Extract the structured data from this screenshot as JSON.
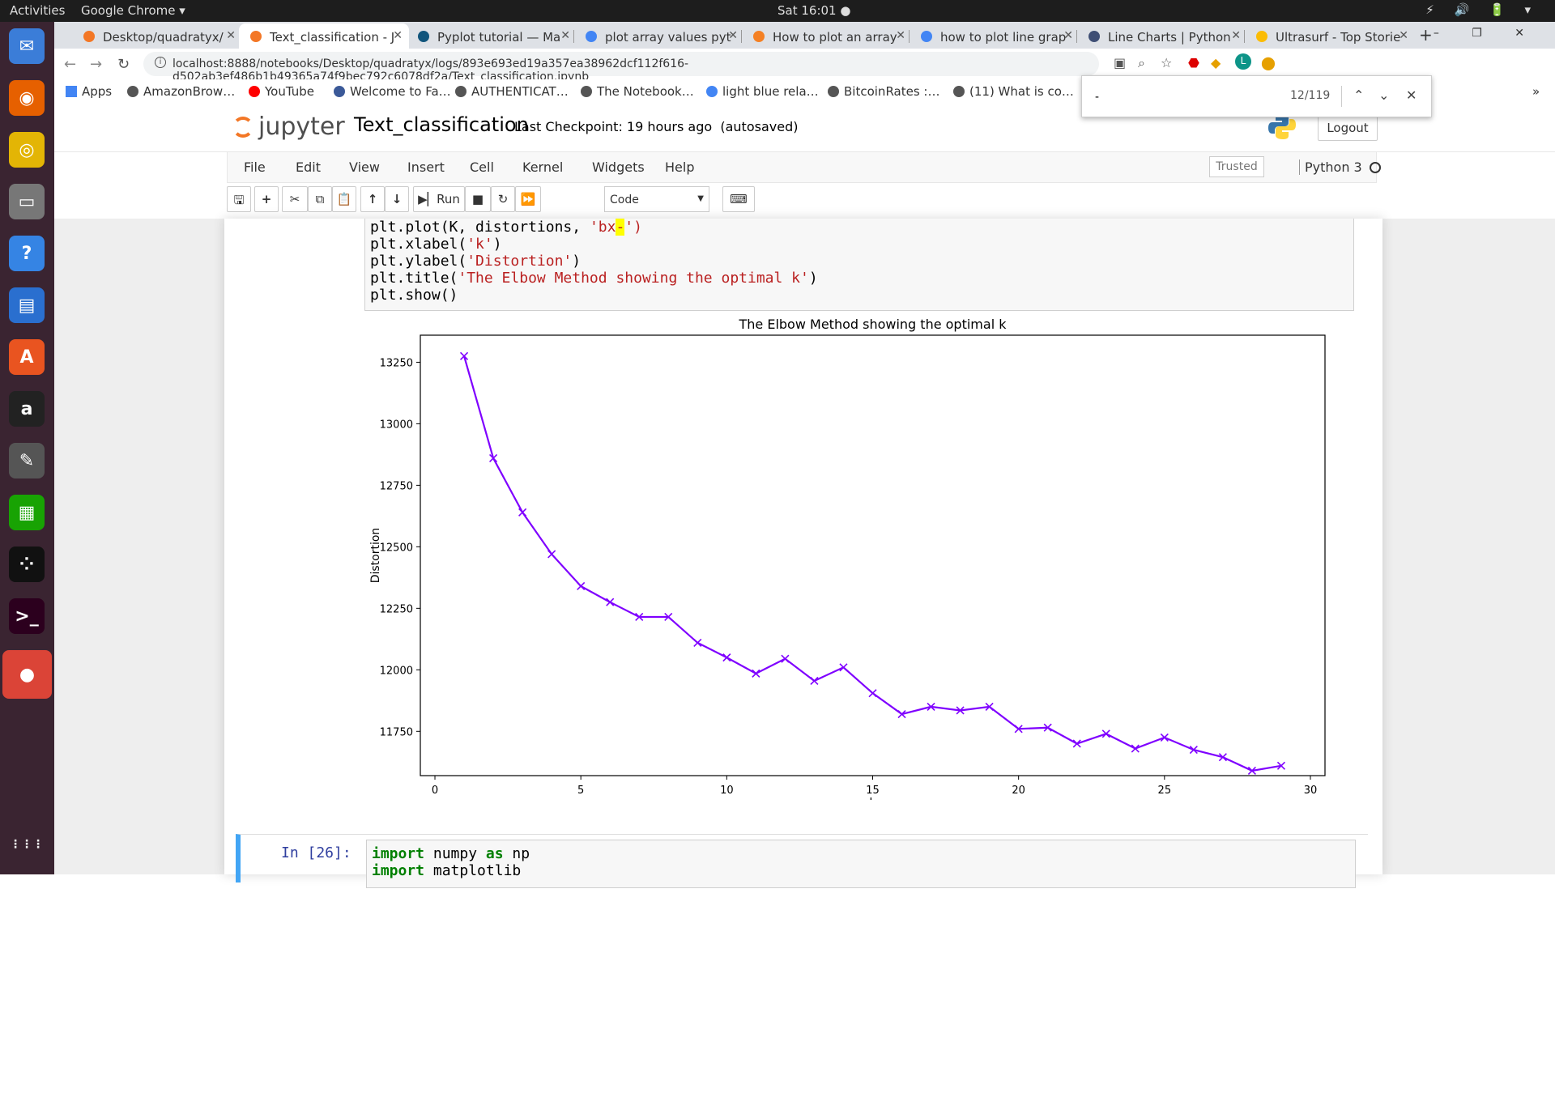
{
  "topbar": {
    "activities": "Activities",
    "app": "Google Chrome ▾",
    "clock": "Sat 16:01 ●",
    "tray": "⚡ 🔊 🔋 ▾"
  },
  "dock": [
    {
      "name": "thunderbird-icon",
      "glyph": "✉",
      "color": "#3b7dd8"
    },
    {
      "name": "firefox-icon",
      "glyph": "◉",
      "color": "#e66000"
    },
    {
      "name": "rhythmbox-icon",
      "glyph": "◎",
      "color": "#e3b505"
    },
    {
      "name": "files-icon",
      "glyph": "▭",
      "color": "#777"
    },
    {
      "name": "help-icon",
      "glyph": "?",
      "color": "#3584e4"
    },
    {
      "name": "writer-icon",
      "glyph": "▤",
      "color": "#2a6fcf"
    },
    {
      "name": "software-icon",
      "glyph": "A",
      "color": "#e95420"
    },
    {
      "name": "amazon-icon",
      "glyph": "a",
      "color": "#222"
    },
    {
      "name": "text-editor-icon",
      "glyph": "✎",
      "color": "#555"
    },
    {
      "name": "calc-icon",
      "glyph": "▦",
      "color": "#18a303"
    },
    {
      "name": "app-icon",
      "glyph": "⁘",
      "color": "#111"
    },
    {
      "name": "terminal-icon",
      "glyph": ">_",
      "color": "#2c001e"
    },
    {
      "name": "chrome-icon",
      "glyph": "●",
      "color": "#db4437"
    },
    {
      "name": "show-apps-icon",
      "glyph": "⋮⋮⋮",
      "color": "transparent"
    }
  ],
  "tabs": [
    {
      "label": "Desktop/quadratyx/",
      "color": "#f37726"
    },
    {
      "label": "Text_classification - J",
      "color": "#f37726"
    },
    {
      "label": "Pyplot tutorial — Ma",
      "color": "#11557c"
    },
    {
      "label": "plot array values pyt",
      "color": "#4285f4"
    },
    {
      "label": "How to plot an array",
      "color": "#f48024"
    },
    {
      "label": "how to plot line grap",
      "color": "#4285f4"
    },
    {
      "label": "Line Charts | Python",
      "color": "#3f4f75"
    },
    {
      "label": "Ultrasurf - Top Storie",
      "color": "#fbbc05"
    }
  ],
  "newtab": "+",
  "winctl": "– ❐ ✕",
  "url": "localhost:8888/notebooks/Desktop/quadratyx/logs/893e693ed19a357ea38962dcf112f616-d502ab3ef486b1b49365a74f9bec792c6078df2a/Text_classification.ipynb",
  "bookmarks": [
    {
      "label": "Apps",
      "color": "#4285f4"
    },
    {
      "label": "AmazonBrow…",
      "color": "#555"
    },
    {
      "label": "YouTube",
      "color": "#f00"
    },
    {
      "label": "Welcome to Fa…",
      "color": "#3b5998"
    },
    {
      "label": "AUTHENTICAT…",
      "color": "#555"
    },
    {
      "label": "The Notebook…",
      "color": "#555"
    },
    {
      "label": "light blue rela…",
      "color": "#4285f4"
    },
    {
      "label": "BitcoinRates :…",
      "color": "#555"
    },
    {
      "label": "(11) What is co…",
      "color": "#555"
    }
  ],
  "find": {
    "query": "-",
    "count": "12/119"
  },
  "jupyter": {
    "logo_text": "jupyter",
    "title": "Text_classification",
    "checkpoint": "Last Checkpoint: 19 hours ago",
    "saved": "(autosaved)",
    "logout": "Logout"
  },
  "menus": [
    "File",
    "Edit",
    "View",
    "Insert",
    "Cell",
    "Kernel",
    "Widgets",
    "Help"
  ],
  "trusted": "Trusted",
  "kernel": "Python 3",
  "toolbar": {
    "run": "Run",
    "celltype": "Code"
  },
  "code": {
    "l1a": "plt.plot(K, distortions, ",
    "l1s": "'bx",
    "l1h": "-",
    "l1e": "')",
    "l2a": "plt.xlabel(",
    "l2s": "'k'",
    "l2e": ")",
    "l3a": "plt.ylabel(",
    "l3s": "'Distortion'",
    "l3e": ")",
    "l4a": "plt.title(",
    "l4s": "'The Elbow Method showing the optimal k'",
    "l4e": ")",
    "l5": "plt.show()"
  },
  "cell2": {
    "prompt": "In [26]:",
    "l1k": "import",
    "l1a": " numpy ",
    "l1b": "as",
    "l1c": " np",
    "l2k": "import",
    "l2a": " matplotlib"
  },
  "chart_data": {
    "type": "line",
    "title": "The Elbow Method showing the optimal k",
    "xlabel": "k",
    "ylabel": "Distortion",
    "xlim": [
      -0.5,
      30.5
    ],
    "ylim": [
      11570,
      13360
    ],
    "xticks": [
      0,
      5,
      10,
      15,
      20,
      25,
      30
    ],
    "yticks": [
      11750,
      12000,
      12250,
      12500,
      12750,
      13000,
      13250
    ],
    "color": "#7f00ff",
    "series": [
      {
        "x": [
          1,
          2,
          3,
          4,
          5,
          6,
          7,
          8,
          9,
          10,
          11,
          12,
          13,
          14,
          15,
          16,
          17,
          18,
          19,
          20,
          21,
          22,
          23,
          24,
          25,
          26,
          27,
          28,
          29
        ],
        "values": [
          13275,
          12860,
          12640,
          12470,
          12340,
          12275,
          12215,
          12215,
          12110,
          12050,
          11985,
          12045,
          11955,
          12010,
          11905,
          11820,
          11850,
          11835,
          11850,
          11760,
          11765,
          11700,
          11740,
          11680,
          11725,
          11675,
          11645,
          11590,
          11610
        ]
      }
    ]
  }
}
